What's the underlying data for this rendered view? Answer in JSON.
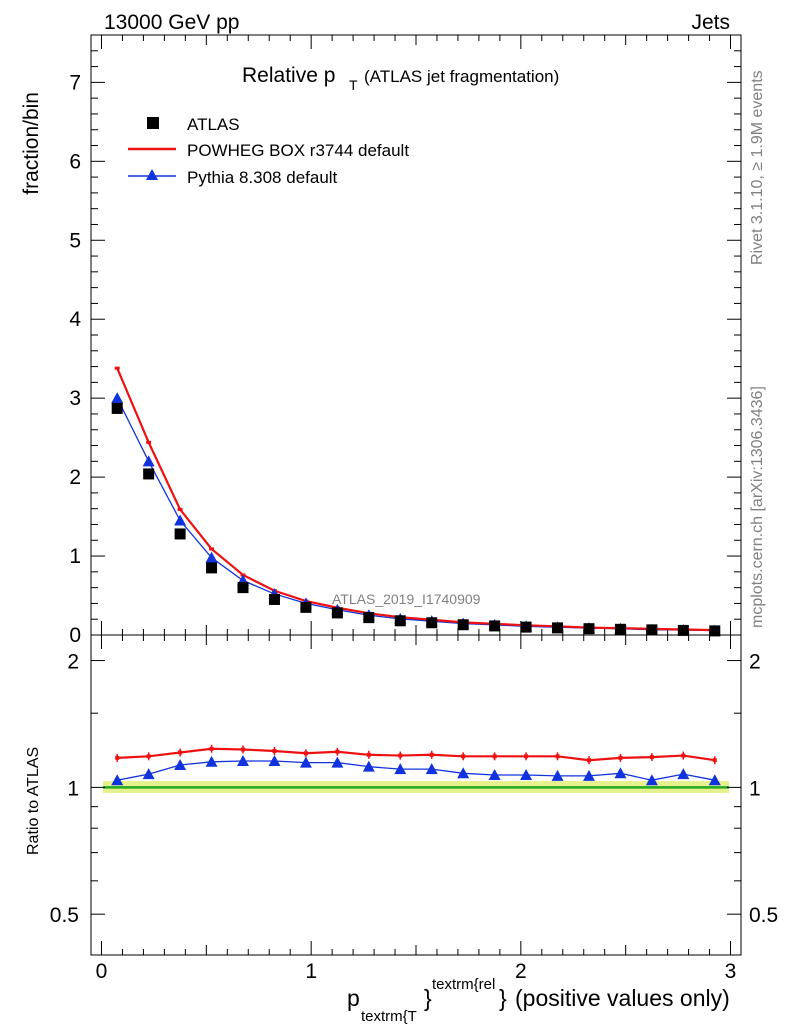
{
  "header": {
    "energy": "13000 GeV pp",
    "process": "Jets"
  },
  "side_labels": {
    "rivet": "Rivet 3.1.10, ≥ 1.9M events",
    "mcplots": "mcplots.cern.ch [arXiv:1306.3436]"
  },
  "watermark": "ATLAS_2019_I1740909",
  "colors": {
    "data": "#000000",
    "powheg": "#ee1111",
    "pythia": "#1133dd",
    "band": "#e6f08c",
    "ratio_line": "#22aa22"
  },
  "chart_data": [
    {
      "type": "line",
      "title": "Relative p",
      "title_sub": "T",
      "title_note": "(ATLAS jet fragmentation)",
      "ylabel": "fraction/bin",
      "xlim": [
        -0.05,
        3.05
      ],
      "ylim": [
        0,
        7.6
      ],
      "yticks": [
        0,
        1,
        2,
        3,
        4,
        5,
        6,
        7
      ],
      "x": [
        0.075,
        0.225,
        0.375,
        0.525,
        0.675,
        0.825,
        0.975,
        1.125,
        1.275,
        1.425,
        1.575,
        1.725,
        1.875,
        2.025,
        2.175,
        2.325,
        2.475,
        2.625,
        2.775,
        2.925
      ],
      "legend": [
        "ATLAS",
        "POWHEG BOX r3744 default",
        "Pythia 8.308 default"
      ],
      "legend_position": "top-left",
      "series": [
        {
          "name": "ATLAS",
          "style": "square-markers",
          "values": [
            2.87,
            2.04,
            1.28,
            0.85,
            0.6,
            0.45,
            0.35,
            0.28,
            0.22,
            0.18,
            0.155,
            0.13,
            0.115,
            0.1,
            0.09,
            0.08,
            0.072,
            0.065,
            0.058,
            0.052
          ]
        },
        {
          "name": "POWHEG BOX r3744 default",
          "style": "line",
          "values": [
            3.38,
            2.44,
            1.59,
            1.09,
            0.76,
            0.56,
            0.43,
            0.345,
            0.275,
            0.225,
            0.193,
            0.16,
            0.142,
            0.123,
            0.11,
            0.093,
            0.086,
            0.078,
            0.07,
            0.062
          ]
        },
        {
          "name": "Pythia 8.308 default",
          "style": "triangle-markers",
          "values": [
            3.0,
            2.2,
            1.45,
            0.98,
            0.69,
            0.52,
            0.4,
            0.32,
            0.25,
            0.205,
            0.175,
            0.145,
            0.128,
            0.11,
            0.098,
            0.087,
            0.079,
            0.067,
            0.063,
            0.055
          ]
        }
      ]
    },
    {
      "type": "line",
      "ylabel": "Ratio to ATLAS",
      "xlabel_main": "p",
      "xlabel_sub": "textrm{T",
      "xlabel_sub_brace": "}",
      "xlabel_sup": "textrm{rel",
      "xlabel_sup_brace": "}",
      "xlabel_note": "(positive values only)",
      "xlim": [
        -0.05,
        3.05
      ],
      "ylim": [
        0.4,
        2.3
      ],
      "log_y": true,
      "yticks": [
        0.5,
        1,
        2
      ],
      "ytick_labels": [
        "0.5",
        "1",
        "2"
      ],
      "xticks": [
        0,
        1,
        2,
        3
      ],
      "xtick_labels": [
        "0",
        "1",
        "2",
        "3"
      ],
      "x": [
        0.075,
        0.225,
        0.375,
        0.525,
        0.675,
        0.825,
        0.975,
        1.125,
        1.275,
        1.425,
        1.575,
        1.725,
        1.875,
        2.025,
        2.175,
        2.325,
        2.475,
        2.625,
        2.775,
        2.925
      ],
      "series": [
        {
          "name": "POWHEG BOX r3744 default",
          "values": [
            1.175,
            1.185,
            1.21,
            1.235,
            1.23,
            1.22,
            1.205,
            1.215,
            1.195,
            1.19,
            1.195,
            1.185,
            1.185,
            1.185,
            1.185,
            1.16,
            1.175,
            1.18,
            1.19,
            1.16
          ]
        },
        {
          "name": "Pythia 8.308 default",
          "values": [
            1.04,
            1.075,
            1.13,
            1.15,
            1.155,
            1.155,
            1.145,
            1.145,
            1.12,
            1.105,
            1.105,
            1.08,
            1.07,
            1.07,
            1.065,
            1.065,
            1.08,
            1.04,
            1.075,
            1.04
          ]
        }
      ]
    }
  ]
}
